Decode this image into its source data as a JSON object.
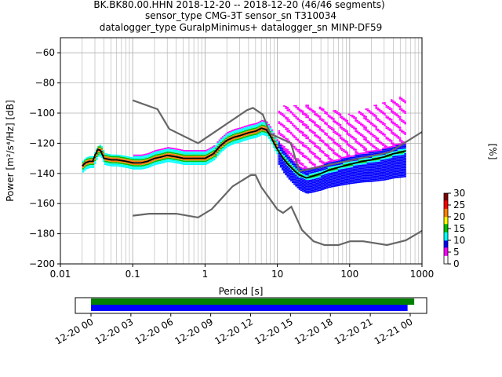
{
  "title": {
    "line1": "BK.BK80.00.HHN   2018-12-20 -- 2018-12-20  (46/46 segments)",
    "line2": "sensor_type CMG-3T sensor_sn T310034",
    "line3": "datalogger_type GuralpMinimus+ datalogger_sn MINP-DF59"
  },
  "chart_data": [
    {
      "type": "heatmap",
      "title": "BK.BK80.00.HHN   2018-12-20 -- 2018-12-20  (46/46 segments)",
      "xlabel": "Period [s]",
      "ylabel": "Power [m²/s⁴/Hz] [dB]",
      "xscale": "log",
      "xlim": [
        0.01,
        1000
      ],
      "ylim": [
        -200,
        -50
      ],
      "grid": true,
      "x_ticks": [
        "0.01",
        "0.1",
        "1",
        "10",
        "100",
        "1000"
      ],
      "y_ticks": [
        "−60",
        "−80",
        "−100",
        "−120",
        "−140",
        "−160",
        "−180",
        "−200"
      ],
      "colorbar": {
        "label": "[%]",
        "ticks": [
          "0",
          "5",
          "10",
          "15",
          "20",
          "25",
          "30"
        ],
        "range": [
          0,
          30
        ],
        "colors": [
          "#ffffff",
          "#ff00ff",
          "#0000ff",
          "#00ffff",
          "#00c000",
          "#ffff00",
          "#ff8000",
          "#ff0000",
          "#800000"
        ]
      },
      "series": [
        {
          "role": "mode",
          "x": [
            0.02,
            0.022,
            0.025,
            0.028,
            0.03,
            0.033,
            0.036,
            0.04,
            0.05,
            0.06,
            0.08,
            0.1,
            0.13,
            0.16,
            0.2,
            0.25,
            0.3,
            0.4,
            0.5,
            0.6,
            0.8,
            1,
            1.3,
            1.6,
            2,
            2.5,
            3,
            4,
            5,
            6,
            7,
            8,
            9,
            10,
            12,
            14,
            17,
            20,
            25,
            30,
            40,
            50,
            70,
            100,
            150,
            200,
            300,
            400,
            500,
            600
          ],
          "y": [
            -135,
            -133,
            -132,
            -132,
            -128,
            -124,
            -125,
            -130,
            -131,
            -131,
            -132,
            -133,
            -133,
            -132,
            -130,
            -129,
            -128,
            -129,
            -130,
            -130,
            -130,
            -130,
            -127,
            -122,
            -118,
            -116,
            -115,
            -113,
            -112,
            -110,
            -111,
            -115,
            -120,
            -124,
            -130,
            -134,
            -138,
            -141,
            -143,
            -142,
            -140,
            -138,
            -136,
            -134,
            -132,
            -131,
            -129,
            -127,
            -126,
            -125
          ]
        },
        {
          "role": "spread-high",
          "x": [
            0.1,
            1,
            5,
            10,
            20,
            30,
            50,
            100,
            200,
            300,
            500,
            700
          ],
          "y": [
            -104,
            -114,
            -100,
            -95,
            -94,
            -95,
            -97,
            -101,
            -95,
            -92,
            -89,
            -86
          ]
        },
        {
          "role": "nhnm",
          "x": [
            0.1,
            0.22,
            0.32,
            0.8,
            3.8,
            4.6,
            6.3,
            7.9,
            15.4,
            20,
            354.8,
            1000
          ],
          "y": [
            -91.5,
            -97.4,
            -110.5,
            -120,
            -98,
            -96.5,
            -101,
            -113.5,
            -120,
            -138.5,
            -126,
            -112.5
          ]
        },
        {
          "role": "nlnm",
          "x": [
            0.1,
            0.17,
            0.4,
            0.8,
            1.24,
            2.4,
            4.3,
            5,
            6,
            10,
            12,
            15.6,
            21.9,
            31.6,
            45,
            70,
            101,
            154,
            328,
            600,
            1000
          ],
          "y": [
            -168,
            -166.7,
            -166.7,
            -169.2,
            -163.7,
            -148.6,
            -141.1,
            -141.1,
            -149,
            -163.8,
            -166.2,
            -162.1,
            -177.5,
            -185,
            -187.5,
            -187.5,
            -185,
            -185,
            -187.5,
            -184.4,
            -178
          ]
        }
      ]
    },
    {
      "type": "bar",
      "role": "data-availability",
      "time_axis_range": [
        "2018-12-20 00:00",
        "2018-12-21 00:00"
      ],
      "x_ticks": [
        "12-20 00",
        "12-20 03",
        "12-20 06",
        "12-20 09",
        "12-20 12",
        "12-20 15",
        "12-20 18",
        "12-20 21",
        "12-21 00"
      ],
      "series": [
        {
          "role": "data",
          "start_hour": 0.0,
          "end_hour": 24.3,
          "color": "#008000"
        },
        {
          "role": "used",
          "start_hour": 0.0,
          "end_hour": 23.8,
          "color": "#0000ff"
        }
      ]
    }
  ]
}
